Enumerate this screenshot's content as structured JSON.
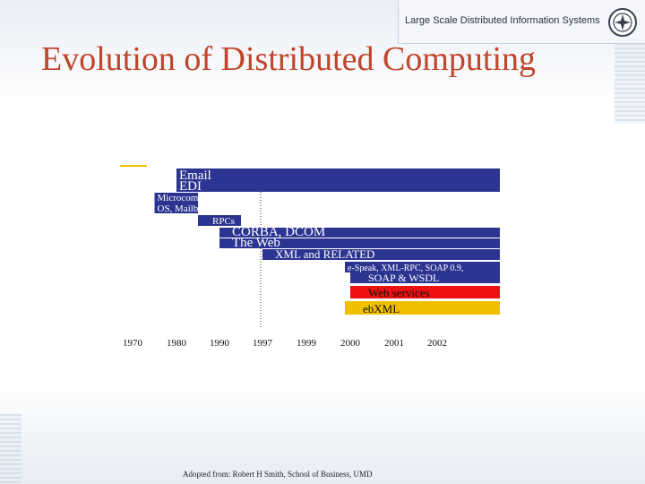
{
  "header": {
    "text": "Large Scale Distributed Information Systems",
    "logo_icon": "university-seal-icon"
  },
  "title": "Evolution of Distributed Computing",
  "caption": "Adopted from: Robert H Smith, School of Business, UMD",
  "chart_data": {
    "type": "timeline",
    "x_ticks": [
      "1970",
      "1980",
      "1990",
      "1997",
      "1999",
      "2000",
      "2001",
      "2002"
    ],
    "marker_line_at": "1997",
    "colors": {
      "navy": "#2b3490",
      "red": "#ee1111",
      "gold": "#f0c000"
    },
    "bars": [
      {
        "label": "Email",
        "start": "1980",
        "end": "2002+",
        "color": "navy"
      },
      {
        "label": "EDI",
        "start": "1980",
        "end": "2002+",
        "color": "navy"
      },
      {
        "label": "Microcompute",
        "start": "1970+",
        "end": "1980+",
        "color": "navy"
      },
      {
        "label": "OS, Mailbox es",
        "start": "1970+",
        "end": "1980+",
        "color": "navy"
      },
      {
        "label": "RPCs",
        "start": "1980+",
        "end": "1990+",
        "color": "navy"
      },
      {
        "label": "CORBA, DCOM",
        "start": "1990",
        "end": "2002+",
        "color": "navy"
      },
      {
        "label": "The Web",
        "start": "1990",
        "end": "2002+",
        "color": "navy"
      },
      {
        "label": "XML and RELATED",
        "start": "1997",
        "end": "2002+",
        "color": "navy"
      },
      {
        "label": "e-Speak, XML-RPC, SOAP 0.9,",
        "start": "2000-",
        "end": "2002+",
        "color": "navy"
      },
      {
        "label": "SOAP & WSDL",
        "start": "2000",
        "end": "2002+",
        "color": "navy"
      },
      {
        "label": "Web services",
        "start": "2000",
        "end": "2002+",
        "color": "red"
      },
      {
        "label": "ebXML",
        "start": "2000-",
        "end": "2002+",
        "color": "gold"
      }
    ]
  }
}
